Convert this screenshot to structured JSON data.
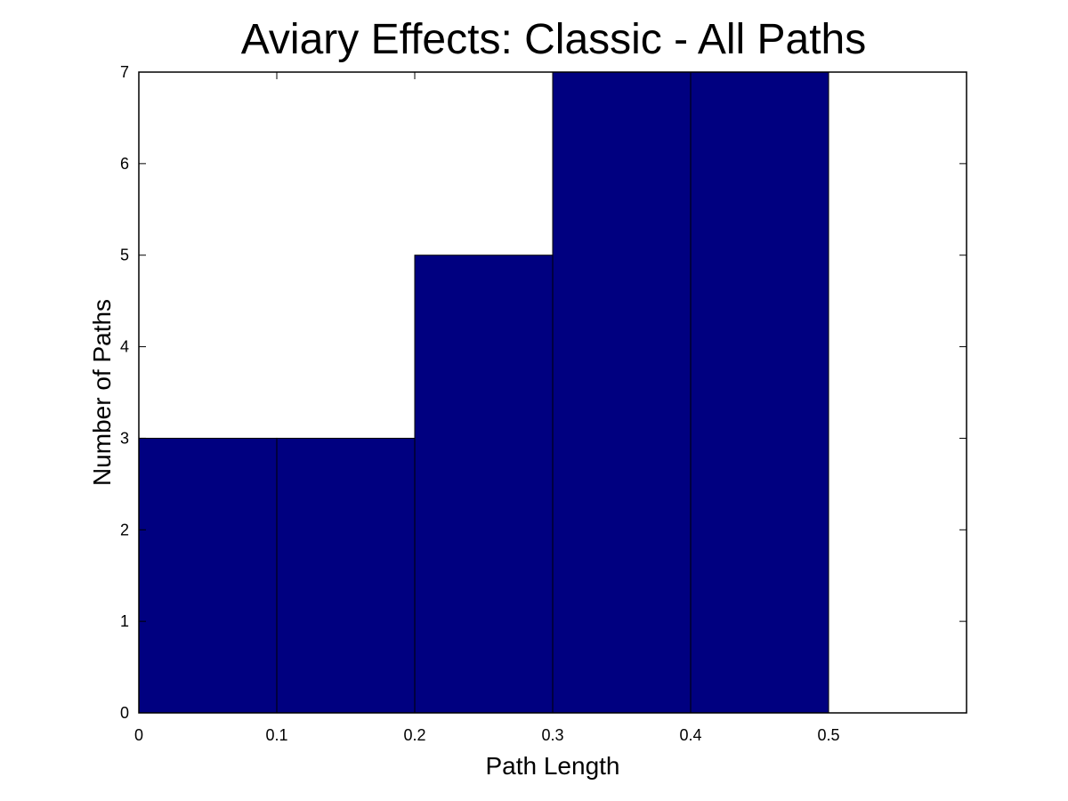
{
  "chart_data": {
    "type": "bar",
    "title": "Aviary Effects: Classic - All Paths",
    "xlabel": "Path Length",
    "ylabel": "Number of Paths",
    "bins": [
      {
        "x0": 0.0,
        "x1": 0.1,
        "count": 3
      },
      {
        "x0": 0.1,
        "x1": 0.2,
        "count": 3
      },
      {
        "x0": 0.2,
        "x1": 0.3,
        "count": 5
      },
      {
        "x0": 0.3,
        "x1": 0.4,
        "count": 7
      },
      {
        "x0": 0.4,
        "x1": 0.5,
        "count": 7
      }
    ],
    "xlim": [
      0,
      0.6
    ],
    "ylim": [
      0,
      7
    ],
    "xticks": [
      "0",
      "0.1",
      "0.2",
      "0.3",
      "0.4",
      "0.5"
    ],
    "yticks": [
      "0",
      "1",
      "2",
      "3",
      "4",
      "5",
      "6",
      "7"
    ],
    "bar_color": "#000080",
    "grid": false,
    "legend": "none"
  }
}
